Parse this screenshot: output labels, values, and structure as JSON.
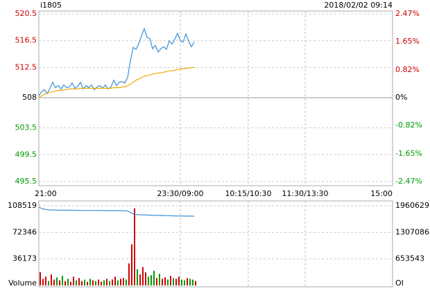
{
  "chart_data": [
    {
      "type": "line",
      "title": "i1805",
      "subtitle": "2018/02/02 09:14",
      "time_labels": [
        "21:00",
        "23:30/09:00",
        "10:15/10:30",
        "11:30/13:30",
        "15:00"
      ],
      "ylim": [
        495.5,
        520.5
      ],
      "yticks": [
        520.5,
        516.5,
        512.5,
        508.0,
        503.5,
        499.5,
        495.5
      ],
      "y2lim": [
        -2.47,
        2.47
      ],
      "y2ticks": [
        {
          "value": 2.47,
          "label": "2.47%"
        },
        {
          "value": 1.65,
          "label": "1.65%"
        },
        {
          "value": 0.82,
          "label": "0.82%"
        },
        {
          "value": 0,
          "label": "0%"
        },
        {
          "value": -0.82,
          "label": "-0.82%"
        },
        {
          "value": -1.65,
          "label": "-1.65%"
        },
        {
          "value": -2.47,
          "label": "-2.47%"
        }
      ],
      "up_color": "#cc0000",
      "down_color": "#009900",
      "flat_color": "#000000",
      "grid": true,
      "series": [
        {
          "color": "#3a8fd6",
          "values": [
            508.3,
            508.9,
            509.2,
            508.6,
            509.4,
            510.3,
            509.5,
            509.8,
            509.3,
            509.9,
            509.5,
            509.6,
            510.2,
            509.4,
            509.7,
            510.3,
            509.3,
            509.8,
            509.5,
            509.9,
            509.2,
            509.6,
            509.8,
            509.4,
            509.9,
            509.3,
            509.6,
            510.6,
            509.8,
            510.3,
            510.4,
            510.2,
            511.0,
            513.5,
            515.5,
            515.2,
            516.0,
            517.2,
            518.3,
            517.0,
            516.8,
            515.3,
            515.8,
            514.8,
            515.3,
            515.6,
            515.2,
            516.5,
            516.0,
            516.7,
            517.6,
            516.5,
            516.3,
            517.5,
            516.4,
            515.6,
            516.3
          ]
        },
        {
          "color": "#f0a800",
          "values": [
            508.0,
            508.3,
            508.5,
            508.7,
            508.8,
            508.9,
            509.0,
            509.1,
            509.1,
            509.2,
            509.2,
            509.3,
            509.3,
            509.3,
            509.3,
            509.4,
            509.4,
            509.4,
            509.4,
            509.4,
            509.4,
            509.4,
            509.4,
            509.4,
            509.4,
            509.4,
            509.4,
            509.5,
            509.5,
            509.5,
            509.6,
            509.6,
            509.8,
            510.0,
            510.3,
            510.6,
            510.8,
            511.0,
            511.2,
            511.3,
            511.4,
            511.5,
            511.6,
            511.7,
            511.7,
            511.8,
            511.9,
            512.0,
            512.0,
            512.1,
            512.2,
            512.3,
            512.3,
            512.4,
            512.4,
            512.5,
            512.5
          ]
        }
      ]
    },
    {
      "type": "bar",
      "ylim": [
        0,
        108519
      ],
      "yticks": [
        108519,
        72346,
        36173
      ],
      "y2lim": [
        0,
        1960629
      ],
      "y2ticks": [
        1960629,
        1307086,
        653543
      ],
      "grid": true,
      "up_color": "#cc0000",
      "down_color": "#009900",
      "series": [
        {
          "name": "Volume",
          "values": [
            18000,
            9000,
            12000,
            6000,
            15000,
            8000,
            11000,
            7000,
            13000,
            6000,
            9000,
            5000,
            12000,
            7000,
            10000,
            6000,
            8000,
            5000,
            9000,
            7000,
            6000,
            8000,
            5000,
            7000,
            9000,
            6000,
            8000,
            12000,
            7000,
            9000,
            10000,
            8000,
            30000,
            56000,
            105000,
            22000,
            15000,
            25000,
            18000,
            12000,
            14000,
            20000,
            10000,
            16000,
            9000,
            11000,
            8000,
            13000,
            10000,
            9000,
            12000,
            8000,
            7000,
            10000,
            9000,
            8000,
            6000
          ]
        },
        {
          "name": "OI",
          "axis": "y2",
          "color": "#3a8fd6",
          "values": [
            1926000,
            1895000,
            1875000,
            1864000,
            1858000,
            1856000,
            1855000,
            1854000,
            1853000,
            1852000,
            1851000,
            1850000,
            1850000,
            1849000,
            1848000,
            1848000,
            1847000,
            1846000,
            1846000,
            1845000,
            1845000,
            1844000,
            1844000,
            1843000,
            1843000,
            1842000,
            1842000,
            1842000,
            1841000,
            1841000,
            1841000,
            1840000,
            1830000,
            1800000,
            1760000,
            1745000,
            1740000,
            1738000,
            1735000,
            1733000,
            1730000,
            1728000,
            1726000,
            1724000,
            1722000,
            1720000,
            1718000,
            1716000,
            1714000,
            1712000,
            1710000,
            1709000,
            1708000,
            1707000,
            1706000,
            1705000,
            1705000
          ]
        }
      ]
    }
  ]
}
